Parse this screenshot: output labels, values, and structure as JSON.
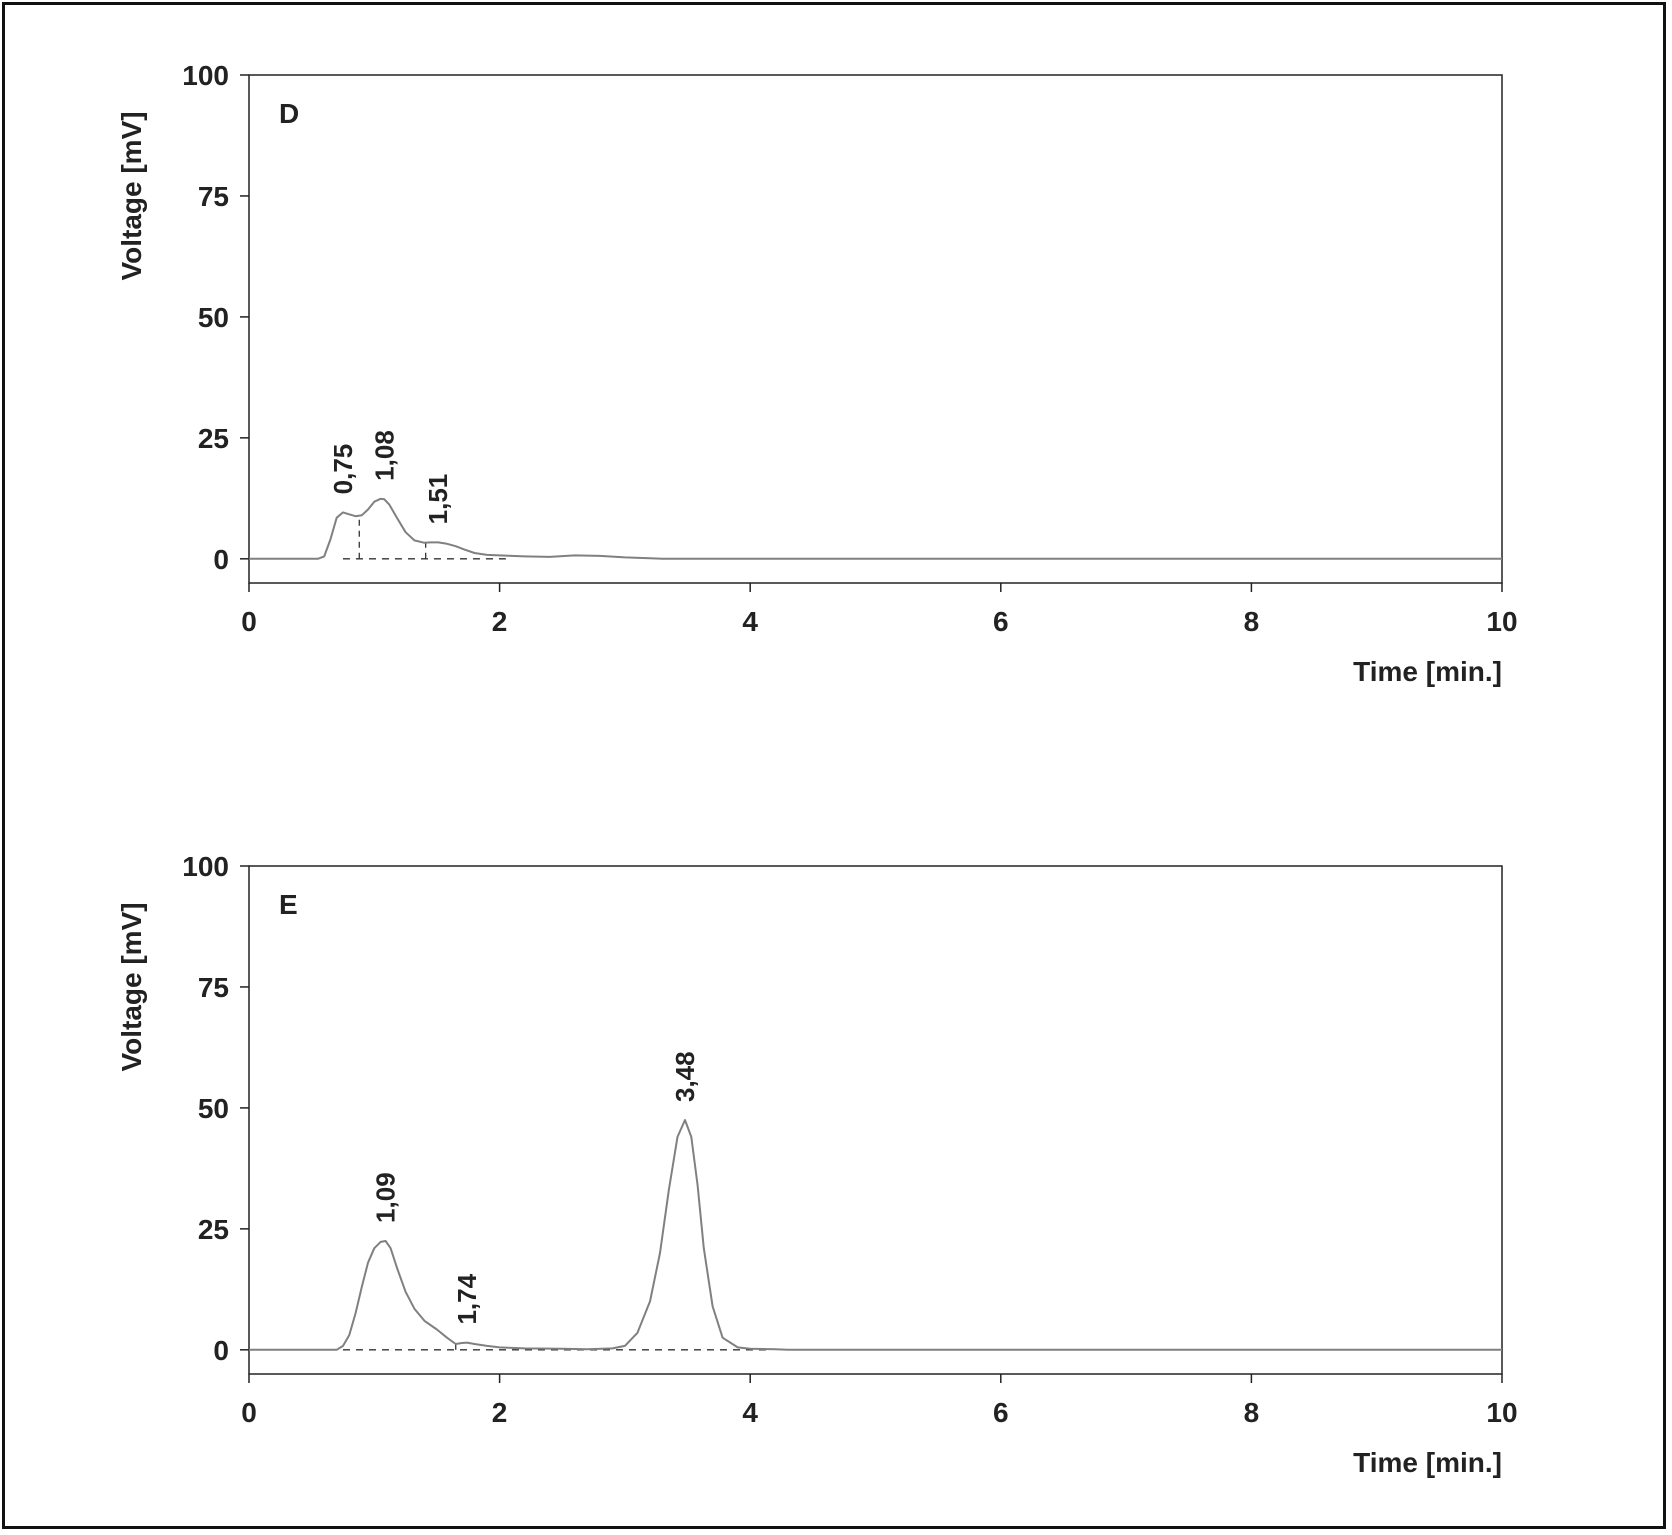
{
  "chart_data": [
    {
      "type": "line",
      "panel_label": "D",
      "xlabel": "Time [min.]",
      "ylabel": "Voltage [mV]",
      "xlim": [
        0,
        10
      ],
      "ylim": [
        -5,
        100
      ],
      "xticks": [
        0,
        2,
        4,
        6,
        8,
        10
      ],
      "yticks": [
        0,
        25,
        50,
        75,
        100
      ],
      "line_color": "#808080",
      "series": [
        {
          "x": [
            0,
            0.55,
            0.6,
            0.65,
            0.7,
            0.75,
            0.8,
            0.85,
            0.9,
            0.95,
            1.0,
            1.05,
            1.08,
            1.12,
            1.18,
            1.25,
            1.32,
            1.4,
            1.45,
            1.51,
            1.58,
            1.65,
            1.72,
            1.8,
            1.9,
            2.0,
            2.2,
            2.4,
            2.6,
            2.8,
            3.0,
            3.2,
            3.3,
            10
          ],
          "y": [
            0,
            0,
            0.5,
            4,
            8.5,
            9.6,
            9.2,
            8.8,
            9.0,
            10.2,
            11.8,
            12.4,
            12.3,
            11.2,
            8.5,
            5.5,
            3.8,
            3.3,
            3.4,
            3.4,
            3.1,
            2.6,
            1.9,
            1.2,
            0.8,
            0.7,
            0.5,
            0.4,
            0.7,
            0.6,
            0.3,
            0.1,
            0,
            0
          ]
        }
      ],
      "peak_labels": [
        {
          "x": 0.75,
          "y": 9.6,
          "text": "0,75"
        },
        {
          "x": 1.08,
          "y": 12.4,
          "text": "1,08"
        },
        {
          "x": 1.51,
          "y": 3.4,
          "text": "1,51"
        }
      ],
      "baseline_dashed": [
        0.75,
        2.05
      ],
      "drop_lines": [
        0.88,
        1.41
      ]
    },
    {
      "type": "line",
      "panel_label": "E",
      "xlabel": "Time [min.]",
      "ylabel": "Voltage [mV]",
      "xlim": [
        0,
        10
      ],
      "ylim": [
        -5,
        100
      ],
      "xticks": [
        0,
        2,
        4,
        6,
        8,
        10
      ],
      "yticks": [
        0,
        25,
        50,
        75,
        100
      ],
      "line_color": "#808080",
      "series": [
        {
          "x": [
            0,
            0.7,
            0.75,
            0.8,
            0.85,
            0.9,
            0.95,
            1.0,
            1.05,
            1.09,
            1.13,
            1.18,
            1.25,
            1.32,
            1.4,
            1.5,
            1.58,
            1.65,
            1.7,
            1.74,
            1.8,
            1.9,
            2.0,
            2.2,
            2.5,
            2.7,
            2.9,
            3.0,
            3.1,
            3.2,
            3.28,
            3.35,
            3.42,
            3.48,
            3.53,
            3.58,
            3.63,
            3.7,
            3.78,
            3.9,
            4.0,
            4.2,
            4.3,
            10
          ],
          "y": [
            0,
            0,
            0.8,
            3,
            7.5,
            13,
            18,
            21,
            22.3,
            22.5,
            21,
            17,
            12,
            8.5,
            6,
            4.2,
            2.5,
            1.2,
            1.4,
            1.5,
            1.2,
            0.8,
            0.5,
            0.3,
            0.2,
            0.1,
            0.3,
            0.8,
            3.5,
            10,
            20,
            33,
            44,
            47.5,
            44,
            34,
            21,
            9,
            2.5,
            0.5,
            0.2,
            0.1,
            0,
            0
          ]
        }
      ],
      "peak_labels": [
        {
          "x": 1.09,
          "y": 22.5,
          "text": "1,09"
        },
        {
          "x": 1.74,
          "y": 1.5,
          "text": "1,74"
        },
        {
          "x": 3.48,
          "y": 47.5,
          "text": "3,48"
        }
      ],
      "baseline_dashed": [
        0.75,
        4.15
      ],
      "drop_lines": [
        1.65
      ]
    }
  ]
}
